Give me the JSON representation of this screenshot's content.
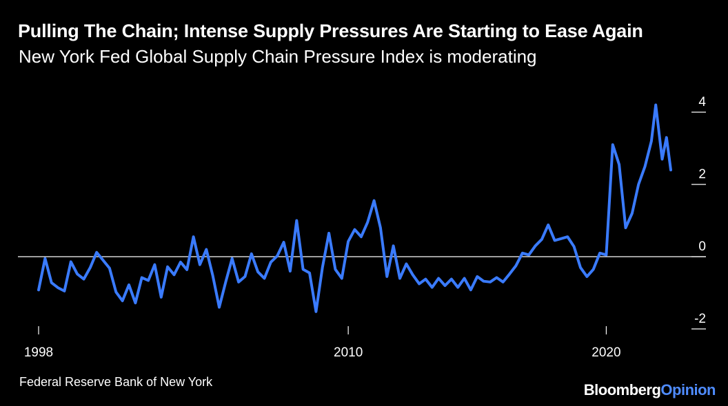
{
  "title": "Pulling The Chain; Intense Supply Pressures Are Starting to Ease Again",
  "subtitle": "New York Fed Global Supply Chain Pressure Index is moderating",
  "source": "Federal Reserve Bank of New York",
  "brand": {
    "part1": "Bloomberg",
    "part2": "Opinion"
  },
  "colors": {
    "background": "#000000",
    "line": "#3a7bff",
    "text": "#ffffff",
    "brand_accent": "#4f8cff"
  },
  "chart_data": {
    "type": "line",
    "title": "Pulling The Chain; Intense Supply Pressures Are Starting to Ease Again",
    "subtitle": "New York Fed Global Supply Chain Pressure Index is moderating",
    "xlabel": "",
    "ylabel": "",
    "x_ticks": [
      "1998",
      "2010",
      "2020"
    ],
    "y_ticks": [
      4,
      2,
      0,
      -2
    ],
    "y_tick_labels": [
      "4",
      "2",
      "0",
      "-2"
    ],
    "xlim": [
      "1998-01",
      "2022-07"
    ],
    "ylim": [
      -2,
      4
    ],
    "y_axis_side": "right",
    "zero_line": true,
    "series": [
      {
        "name": "",
        "points": [
          [
            "1998-01",
            -0.92
          ],
          [
            "1998-04",
            -0.05
          ],
          [
            "1998-07",
            -0.72
          ],
          [
            "1998-10",
            -0.86
          ],
          [
            "1999-01",
            -0.95
          ],
          [
            "1999-04",
            -0.14
          ],
          [
            "1999-07",
            -0.48
          ],
          [
            "1999-10",
            -0.62
          ],
          [
            "2000-01",
            -0.3
          ],
          [
            "2000-04",
            0.12
          ],
          [
            "2000-07",
            -0.1
          ],
          [
            "2000-10",
            -0.32
          ],
          [
            "2001-01",
            -0.98
          ],
          [
            "2001-04",
            -1.22
          ],
          [
            "2001-07",
            -0.78
          ],
          [
            "2001-10",
            -1.28
          ],
          [
            "2002-01",
            -0.58
          ],
          [
            "2002-04",
            -0.66
          ],
          [
            "2002-07",
            -0.22
          ],
          [
            "2002-10",
            -1.12
          ],
          [
            "2003-01",
            -0.28
          ],
          [
            "2003-04",
            -0.5
          ],
          [
            "2003-07",
            -0.15
          ],
          [
            "2003-10",
            -0.36
          ],
          [
            "2004-01",
            0.55
          ],
          [
            "2004-04",
            -0.22
          ],
          [
            "2004-07",
            0.2
          ],
          [
            "2004-10",
            -0.52
          ],
          [
            "2005-01",
            -1.4
          ],
          [
            "2005-04",
            -0.7
          ],
          [
            "2005-07",
            -0.05
          ],
          [
            "2005-10",
            -0.7
          ],
          [
            "2006-01",
            -0.55
          ],
          [
            "2006-04",
            0.08
          ],
          [
            "2006-07",
            -0.42
          ],
          [
            "2006-10",
            -0.6
          ],
          [
            "2007-01",
            -0.15
          ],
          [
            "2007-04",
            0.02
          ],
          [
            "2007-07",
            0.4
          ],
          [
            "2007-10",
            -0.4
          ],
          [
            "2008-01",
            1.0
          ],
          [
            "2008-04",
            -0.35
          ],
          [
            "2008-07",
            -0.45
          ],
          [
            "2008-10",
            -1.52
          ],
          [
            "2009-01",
            -0.3
          ],
          [
            "2009-04",
            0.65
          ],
          [
            "2009-07",
            -0.35
          ],
          [
            "2009-10",
            -0.6
          ],
          [
            "2010-01",
            0.42
          ],
          [
            "2010-04",
            0.75
          ],
          [
            "2010-07",
            0.55
          ],
          [
            "2010-10",
            0.95
          ],
          [
            "2011-01",
            1.55
          ],
          [
            "2011-04",
            0.8
          ],
          [
            "2011-07",
            -0.55
          ],
          [
            "2011-10",
            0.3
          ],
          [
            "2012-01",
            -0.6
          ],
          [
            "2012-04",
            -0.2
          ],
          [
            "2012-07",
            -0.5
          ],
          [
            "2012-10",
            -0.75
          ],
          [
            "2013-01",
            -0.62
          ],
          [
            "2013-04",
            -0.85
          ],
          [
            "2013-07",
            -0.6
          ],
          [
            "2013-10",
            -0.8
          ],
          [
            "2014-01",
            -0.62
          ],
          [
            "2014-04",
            -0.85
          ],
          [
            "2014-07",
            -0.6
          ],
          [
            "2014-10",
            -0.92
          ],
          [
            "2015-01",
            -0.55
          ],
          [
            "2015-04",
            -0.68
          ],
          [
            "2015-07",
            -0.7
          ],
          [
            "2015-10",
            -0.58
          ],
          [
            "2016-01",
            -0.7
          ],
          [
            "2016-04",
            -0.48
          ],
          [
            "2016-07",
            -0.25
          ],
          [
            "2016-10",
            0.1
          ],
          [
            "2017-01",
            0.05
          ],
          [
            "2017-04",
            0.3
          ],
          [
            "2017-07",
            0.48
          ],
          [
            "2017-10",
            0.88
          ],
          [
            "2018-01",
            0.45
          ],
          [
            "2018-04",
            0.5
          ],
          [
            "2018-07",
            0.55
          ],
          [
            "2018-10",
            0.28
          ],
          [
            "2019-01",
            -0.3
          ],
          [
            "2019-04",
            -0.55
          ],
          [
            "2019-07",
            -0.35
          ],
          [
            "2019-10",
            0.1
          ],
          [
            "2020-01",
            0.05
          ],
          [
            "2020-04",
            3.1
          ],
          [
            "2020-07",
            2.55
          ],
          [
            "2020-10",
            0.8
          ],
          [
            "2021-01",
            1.2
          ],
          [
            "2021-04",
            2.0
          ],
          [
            "2021-07",
            2.5
          ],
          [
            "2021-10",
            3.2
          ],
          [
            "2021-12",
            4.2
          ],
          [
            "2022-03",
            2.7
          ],
          [
            "2022-05",
            3.3
          ],
          [
            "2022-07",
            2.4
          ]
        ]
      }
    ],
    "grid": false,
    "legend": "none"
  }
}
